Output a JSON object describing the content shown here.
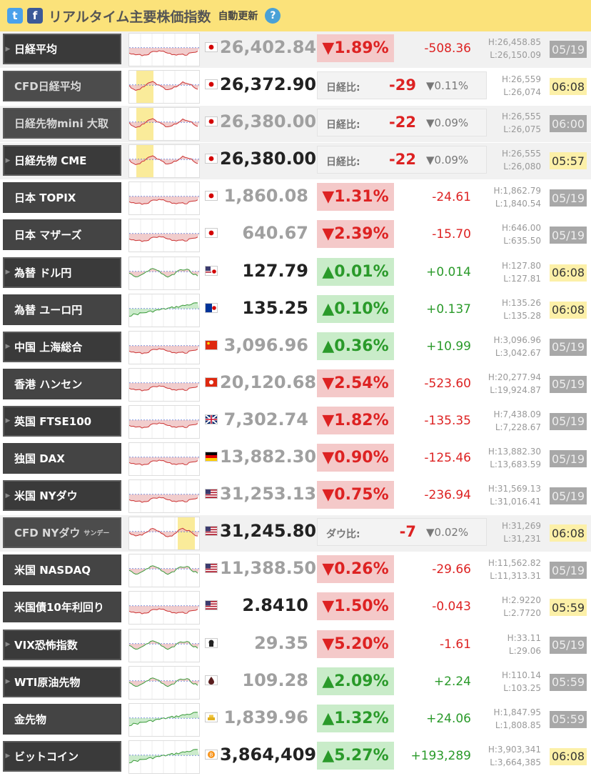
{
  "header": {
    "title": "リアルタイム主要株価指数",
    "subtitle": "自動更新",
    "help": "?",
    "twitter_icon": "twitter-icon",
    "facebook_icon": "facebook-icon"
  },
  "rows": [
    {
      "name": "日経平均",
      "arrow": true,
      "style": "box",
      "flag": "jp",
      "price": "26,402.84",
      "bright": false,
      "pct": "▼1.89%",
      "dir": "down",
      "chg": "-508.36",
      "high": "H:26,458.85",
      "low": "L:26,150.09",
      "time": "05/19",
      "fresh": false,
      "chart": "down",
      "alt": true
    },
    {
      "name": "CFD日経平均",
      "arrow": false,
      "style": "cfd",
      "flag": "jp",
      "price": "26,372.90",
      "bright": true,
      "cmp_label": "日経比:",
      "cmp_diff": "-29",
      "cmp_pct": "▼0.11%",
      "high": "H:26,559",
      "low": "L:26,074",
      "time": "06:08",
      "fresh": true,
      "chart": "cfd",
      "alt": false
    },
    {
      "name": "日経先物mini 大取",
      "arrow": false,
      "style": "cfd",
      "flag": "jp",
      "price": "26,380.00",
      "bright": false,
      "cmp_label": "日経比:",
      "cmp_diff": "-22",
      "cmp_pct": "▼0.09%",
      "high": "H:26,555",
      "low": "L:26,075",
      "time": "06:00",
      "fresh": false,
      "chart": "cfd",
      "alt": true
    },
    {
      "name": "日経先物 CME",
      "arrow": true,
      "style": "box",
      "flag": "jp",
      "price": "26,380.00",
      "bright": true,
      "cmp_label": "日経比:",
      "cmp_diff": "-22",
      "cmp_pct": "▼0.09%",
      "high": "H:26,555",
      "low": "L:26,080",
      "time": "05:57",
      "fresh": true,
      "chart": "cfd",
      "alt": true
    },
    {
      "name": "日本 TOPIX",
      "arrow": false,
      "style": "plain",
      "flag": "jp",
      "price": "1,860.08",
      "bright": false,
      "pct": "▼1.31%",
      "dir": "down",
      "chg": "-24.61",
      "high": "H:1,862.79",
      "low": "L:1,840.54",
      "time": "05/19",
      "fresh": false,
      "chart": "down",
      "alt": false
    },
    {
      "name": "日本 マザーズ",
      "arrow": false,
      "style": "plain",
      "flag": "jp",
      "price": "640.67",
      "bright": false,
      "pct": "▼2.39%",
      "dir": "down",
      "chg": "-15.70",
      "high": "H:646.00",
      "low": "L:635.50",
      "time": "05/19",
      "fresh": false,
      "chart": "down",
      "alt": false
    },
    {
      "name": "為替 ドル円",
      "arrow": true,
      "style": "box",
      "flag": "usjp",
      "price": "127.79",
      "bright": true,
      "pct": "▲0.01%",
      "dir": "up",
      "chg": "+0.014",
      "high": "H:127.80",
      "low": "L:127.81",
      "time": "06:08",
      "fresh": true,
      "chart": "mixed",
      "alt": false
    },
    {
      "name": "為替 ユーロ円",
      "arrow": false,
      "style": "plain",
      "flag": "eujp",
      "price": "135.25",
      "bright": true,
      "pct": "▲0.10%",
      "dir": "up",
      "chg": "+0.137",
      "high": "H:135.26",
      "low": "L:135.28",
      "time": "06:08",
      "fresh": true,
      "chart": "up",
      "alt": false
    },
    {
      "name": "中国 上海総合",
      "arrow": true,
      "style": "box",
      "flag": "cn",
      "price": "3,096.96",
      "bright": false,
      "pct": "▲0.36%",
      "dir": "up",
      "chg": "+10.99",
      "high": "H:3,096.96",
      "low": "L:3,042.67",
      "time": "05/19",
      "fresh": false,
      "chart": "down",
      "alt": false
    },
    {
      "name": "香港 ハンセン",
      "arrow": false,
      "style": "plain",
      "flag": "hk",
      "price": "20,120.68",
      "bright": false,
      "pct": "▼2.54%",
      "dir": "down",
      "chg": "-523.60",
      "high": "H:20,277.94",
      "low": "L:19,924.87",
      "time": "05/19",
      "fresh": false,
      "chart": "down",
      "alt": false
    },
    {
      "name": "英国 FTSE100",
      "arrow": true,
      "style": "box",
      "flag": "gb",
      "price": "7,302.74",
      "bright": false,
      "pct": "▼1.82%",
      "dir": "down",
      "chg": "-135.35",
      "high": "H:7,438.09",
      "low": "L:7,228.67",
      "time": "05/19",
      "fresh": false,
      "chart": "down",
      "alt": false
    },
    {
      "name": "独国 DAX",
      "arrow": false,
      "style": "plain",
      "flag": "de",
      "price": "13,882.30",
      "bright": false,
      "pct": "▼0.90%",
      "dir": "down",
      "chg": "-125.46",
      "high": "H:13,882.30",
      "low": "L:13,683.59",
      "time": "05/19",
      "fresh": false,
      "chart": "down",
      "alt": false
    },
    {
      "name": "米国 NYダウ",
      "arrow": true,
      "style": "box",
      "flag": "us",
      "price": "31,253.13",
      "bright": false,
      "pct": "▼0.75%",
      "dir": "down",
      "chg": "-236.94",
      "high": "H:31,569.13",
      "low": "L:31,016.41",
      "time": "05/19",
      "fresh": false,
      "chart": "down",
      "alt": false
    },
    {
      "name": "CFD NYダウ",
      "small": "サンデー",
      "arrow": false,
      "style": "cfd",
      "flag": "us",
      "price": "31,245.80",
      "bright": true,
      "cmp_label": "ダウ比:",
      "cmp_diff": "-7",
      "cmp_pct": "▼0.02%",
      "high": "H:31,269",
      "low": "L:31,231",
      "time": "06:08",
      "fresh": true,
      "chart": "cfd2",
      "alt": true
    },
    {
      "name": "米国 NASDAQ",
      "arrow": false,
      "style": "plain",
      "flag": "us",
      "price": "11,388.50",
      "bright": false,
      "pct": "▼0.26%",
      "dir": "down",
      "chg": "-29.66",
      "high": "H:11,562.82",
      "low": "L:11,313.31",
      "time": "05/19",
      "fresh": false,
      "chart": "mixed",
      "alt": false
    },
    {
      "name": "米国債10年利回り",
      "arrow": false,
      "style": "plain",
      "flag": "us",
      "price": "2.8410",
      "bright": true,
      "pct": "▼1.50%",
      "dir": "down",
      "chg": "-0.043",
      "high": "H:2.9220",
      "low": "L:2.7720",
      "time": "05:59",
      "fresh": true,
      "chart": "down",
      "alt": false
    },
    {
      "name": "VIX恐怖指数",
      "arrow": true,
      "style": "box",
      "flag": "vix",
      "price": "29.35",
      "bright": false,
      "pct": "▼5.20%",
      "dir": "down",
      "chg": "-1.61",
      "high": "H:33.11",
      "low": "L:29.06",
      "time": "05/19",
      "fresh": false,
      "chart": "mixed",
      "alt": false
    },
    {
      "name": "WTI原油先物",
      "arrow": true,
      "style": "box",
      "flag": "oil",
      "price": "109.28",
      "bright": false,
      "pct": "▲2.09%",
      "dir": "up",
      "chg": "+2.24",
      "high": "H:110.14",
      "low": "L:103.25",
      "time": "05:59",
      "fresh": false,
      "chart": "mixed",
      "alt": false
    },
    {
      "name": "金先物",
      "arrow": false,
      "style": "plain",
      "flag": "gold",
      "price": "1,839.96",
      "bright": false,
      "pct": "▲1.32%",
      "dir": "up",
      "chg": "+24.06",
      "high": "H:1,847.95",
      "low": "L:1,808.85",
      "time": "05:59",
      "fresh": false,
      "chart": "up",
      "alt": false
    },
    {
      "name": "ビットコイン",
      "arrow": true,
      "style": "box",
      "flag": "btc",
      "price": "3,864,409",
      "bright": true,
      "pct": "▲5.27%",
      "dir": "up",
      "chg": "+193,289",
      "high": "H:3,903,341",
      "low": "L:3,664,385",
      "time": "06:08",
      "fresh": true,
      "chart": "up",
      "alt": false
    }
  ]
}
